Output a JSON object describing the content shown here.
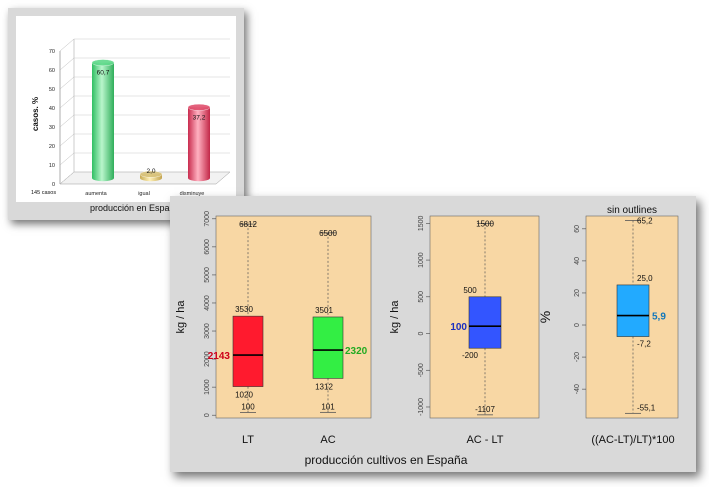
{
  "top_chart": {
    "ylabel": "casos.  %",
    "cases_note": "145 casos",
    "caption": "producción en España",
    "ylim": [
      0,
      70
    ],
    "yticks": [
      "0",
      "10",
      "20",
      "30",
      "40",
      "50",
      "60",
      "70"
    ]
  },
  "bottom_chart": {
    "caption": "producción cultivos en España",
    "note": "sin outlines",
    "left": {
      "ylabel": "kg / ha",
      "yticks": [
        "0",
        "1000",
        "2000",
        "3000",
        "4000",
        "5000",
        "6000",
        "7000"
      ],
      "categories": [
        "LT",
        "AC"
      ]
    },
    "middle": {
      "ylabel": "kg / ha",
      "yticks": [
        "-1000",
        "-500",
        "0",
        "500",
        "1000",
        "1500"
      ],
      "category": "AC - LT"
    },
    "right": {
      "ylabel": "%",
      "yticks": [
        "-40",
        "-20",
        "0",
        "20",
        "40",
        "60"
      ],
      "category": "((AC-LT)/LT)*100"
    }
  },
  "chart_data": [
    {
      "type": "bar",
      "title": "",
      "xlabel": "producción en España",
      "ylabel": "casos.  %",
      "ylim": [
        0,
        70
      ],
      "categories": [
        "aumenta",
        "igual",
        "disminuye"
      ],
      "values": [
        60.7,
        2.0,
        37.2
      ],
      "value_labels": [
        "60,7",
        "2,0",
        "37,2"
      ],
      "colors": [
        "#5fd98a",
        "#d8c27a",
        "#e0506e"
      ]
    },
    {
      "type": "box",
      "xlabel": "",
      "ylabel": "kg / ha",
      "ylim": [
        0,
        7000
      ],
      "series": [
        {
          "name": "LT",
          "min": 100,
          "q1": 1020,
          "median": 2143,
          "q3": 3530,
          "max": 6812,
          "labels": {
            "min": "100",
            "q1": "1020",
            "median": "2143",
            "q3": "3530",
            "max": "6812"
          },
          "color": "#ff1a2e",
          "median_color": "#cc0018"
        },
        {
          "name": "AC",
          "min": 101,
          "q1": 1312,
          "median": 2320,
          "q3": 3501,
          "max": 6500,
          "labels": {
            "min": "101",
            "q1": "1312",
            "median": "2320",
            "q3": "3501",
            "max": "6500"
          },
          "color": "#33ee44",
          "median_color": "#22aa22"
        }
      ]
    },
    {
      "type": "box",
      "ylabel": "kg / ha",
      "ylim": [
        -1150,
        1600
      ],
      "series": [
        {
          "name": "AC - LT",
          "min": -1107,
          "q1": -200,
          "median": 100,
          "q3": 500,
          "max": 1500,
          "labels": {
            "min": "-1107",
            "q1": "-200",
            "median": "100",
            "q3": "500",
            "max": "1500"
          },
          "color": "#3355ff",
          "median_color": "#1a2fbf"
        }
      ]
    },
    {
      "type": "box",
      "ylabel": "%",
      "ylim": [
        -58,
        68
      ],
      "series": [
        {
          "name": "((AC-LT)/LT)*100",
          "min": -55.1,
          "q1": -7.2,
          "median": 5.9,
          "q3": 25.0,
          "max": 65.2,
          "labels": {
            "min": "-55,1",
            "q1": "-7,2",
            "median": "5,9",
            "q3": "25,0",
            "max": "65,2"
          },
          "color": "#22aaff",
          "median_color": "#1177bb"
        }
      ]
    }
  ]
}
